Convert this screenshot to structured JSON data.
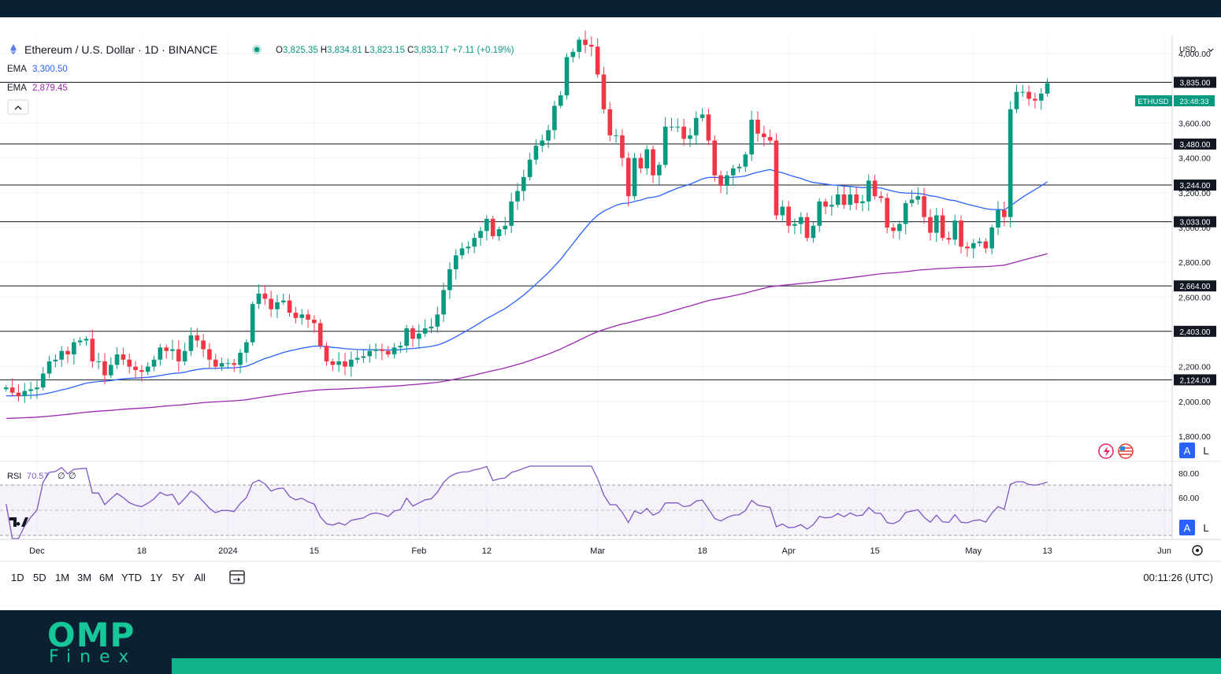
{
  "header": {
    "symbol_title": "Ethereum / U.S. Dollar · 1D · BINANCE",
    "ohlc": {
      "o_label": "O",
      "o": "3,825.35",
      "h_label": "H",
      "h": "3,834.81",
      "l_label": "L",
      "l": "3,823.15",
      "c_label": "C",
      "c": "3,833.17",
      "change": "+7.11 (+0.19%)"
    },
    "ema_fast": {
      "label": "EMA",
      "value": "3,300.50"
    },
    "ema_slow": {
      "label": "EMA",
      "value": "2,879.45"
    }
  },
  "currency": "USD",
  "price_tag": {
    "symbol": "ETHUSD",
    "countdown": "23:48:33"
  },
  "level_labels": [
    "3,835.00",
    "3,480.00",
    "3,244.00",
    "3,033.00",
    "2,664.00",
    "2,403.00",
    "2,124.00"
  ],
  "rsi": {
    "label": "RSI",
    "value": "70.57",
    "extra1": "∅",
    "extra2": "∅",
    "ticks": [
      "80.00",
      "60.00"
    ]
  },
  "scale_buttons": {
    "auto": "A",
    "log": "L"
  },
  "x_axis_labels": [
    "Dec",
    "18",
    "2024",
    "15",
    "Feb",
    "12",
    "Mar",
    "18",
    "Apr",
    "15",
    "May",
    "13",
    "Jun"
  ],
  "timeframes": [
    "1D",
    "5D",
    "1M",
    "3M",
    "6M",
    "YTD",
    "1Y",
    "5Y",
    "All"
  ],
  "clock": "00:11:26 (UTC)",
  "logo": {
    "top": "OMP",
    "bottom": "Finex"
  },
  "colors": {
    "up": "#089981",
    "down": "#f23645",
    "ema_fast": "#2962ff",
    "ema_slow": "#9c27b0",
    "rsi": "#7e57c2"
  },
  "chart_data": {
    "type": "candlestick",
    "price_ticks": [
      "4,000.00",
      "3,600.00",
      "3,400.00",
      "3,200.00",
      "3,000.00",
      "2,800.00",
      "2,600.00",
      "2,200.00",
      "2,000.00",
      "1,800.00"
    ],
    "horizontal_levels": [
      3835,
      3480,
      3244,
      3033,
      2664,
      2403,
      2124
    ],
    "y_range": [
      1750,
      4100
    ],
    "x_range": [
      "2023-11-25",
      "2024-06-02"
    ],
    "series": [
      {
        "type": "candlestick",
        "start": "2023-11-26",
        "interval": "1D",
        "closes": [
          2080,
          2050,
          2030,
          2060,
          2070,
          2080,
          2160,
          2230,
          2240,
          2290,
          2270,
          2340,
          2350,
          2360,
          2230,
          2230,
          2150,
          2210,
          2270,
          2240,
          2200,
          2180,
          2170,
          2200,
          2240,
          2310,
          2290,
          2300,
          2230,
          2290,
          2380,
          2350,
          2300,
          2240,
          2200,
          2220,
          2220,
          2210,
          2280,
          2340,
          2560,
          2620,
          2590,
          2530,
          2570,
          2580,
          2510,
          2480,
          2500,
          2470,
          2450,
          2320,
          2230,
          2210,
          2230,
          2200,
          2240,
          2250,
          2260,
          2290,
          2300,
          2290,
          2270,
          2310,
          2320,
          2420,
          2360,
          2390,
          2420,
          2430,
          2500,
          2640,
          2760,
          2840,
          2880,
          2890,
          2940,
          2980,
          3050,
          2950,
          2990,
          3010,
          3150,
          3210,
          3290,
          3390,
          3470,
          3500,
          3560,
          3700,
          3760,
          3980,
          4010,
          4080,
          4050,
          4040,
          3880,
          3680,
          3530,
          3530,
          3400,
          3180,
          3400,
          3340,
          3450,
          3300,
          3360,
          3580,
          3580,
          3580,
          3510,
          3530,
          3630,
          3650,
          3500,
          3300,
          3240,
          3300,
          3340,
          3350,
          3420,
          3620,
          3540,
          3520,
          3500,
          3070,
          3120,
          3010,
          3020,
          3060,
          2940,
          3010,
          3150,
          3120,
          3130,
          3190,
          3130,
          3190,
          3140,
          3150,
          3270,
          3180,
          3170,
          3000,
          2980,
          3020,
          3140,
          3160,
          3180,
          3060,
          2970,
          3070,
          2940,
          2930,
          3040,
          2890,
          2880,
          2910,
          2920,
          2880,
          3000,
          3100,
          3060,
          3680,
          3780,
          3780,
          3740,
          3730,
          3770,
          3830
        ]
      }
    ],
    "indicators": [
      {
        "type": "ema",
        "name": "EMA",
        "display": "3,300.50"
      },
      {
        "type": "ema",
        "name": "EMA",
        "display": "2,879.45"
      },
      {
        "type": "rsi",
        "name": "RSI",
        "display": "70.57",
        "y_range": [
          0,
          100
        ],
        "band": [
          30,
          70
        ],
        "levels": [
          80,
          60
        ]
      }
    ]
  }
}
